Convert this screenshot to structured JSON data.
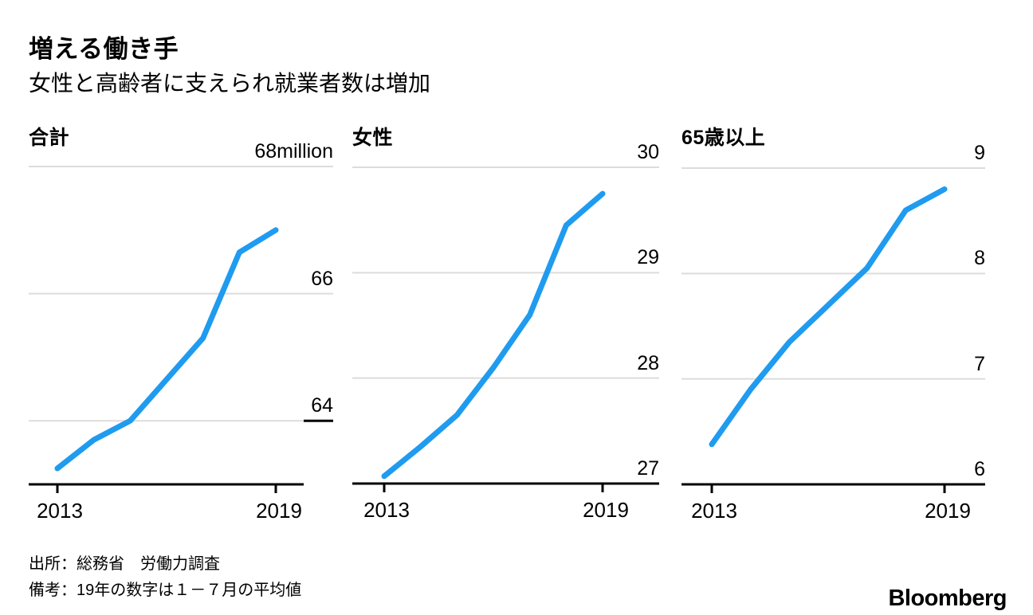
{
  "header": {
    "title": "増える働き手",
    "subtitle": "女性と高齢者に支えられ就業者数は増加"
  },
  "footer": {
    "source": "出所：総務省　労働力調査",
    "note": "備考：19年の数字は１－７月の平均値",
    "logo": "Bloomberg"
  },
  "colors": {
    "line": "#1f9bf0",
    "grid": "#dcdcdc",
    "axis": "#000000"
  },
  "chart_data": [
    {
      "type": "line",
      "title": "合計",
      "x": [
        2013,
        2014,
        2015,
        2016,
        2017,
        2018,
        2019
      ],
      "values": [
        63.25,
        63.7,
        64.0,
        64.65,
        65.3,
        66.65,
        67.0
      ],
      "ylim": [
        63,
        68
      ],
      "gridline_values": [
        68,
        66,
        64
      ],
      "ylabels": [
        {
          "v": 68,
          "text": "68million"
        },
        {
          "v": 66,
          "text": "66"
        },
        {
          "v": 64,
          "text": "64"
        }
      ],
      "xtick_labels": [
        "2013",
        "2019"
      ],
      "legend": "none",
      "grid": "horizontal"
    },
    {
      "type": "line",
      "title": "女性",
      "x": [
        2013,
        2014,
        2015,
        2016,
        2017,
        2018,
        2019
      ],
      "values": [
        27.07,
        27.35,
        27.65,
        28.1,
        28.6,
        29.45,
        29.75
      ],
      "ylim": [
        27,
        30
      ],
      "gridline_values": [
        30,
        29,
        28
      ],
      "ylabels": [
        {
          "v": 30,
          "text": "30"
        },
        {
          "v": 29,
          "text": "29"
        },
        {
          "v": 28,
          "text": "28"
        },
        {
          "v": 27,
          "text": "27"
        }
      ],
      "xtick_labels": [
        "2013",
        "2019"
      ],
      "legend": "none",
      "grid": "horizontal"
    },
    {
      "type": "line",
      "title": "65歳以上",
      "x": [
        2013,
        2014,
        2015,
        2016,
        2017,
        2018,
        2019
      ],
      "values": [
        6.38,
        6.9,
        7.35,
        7.7,
        8.05,
        8.6,
        8.8
      ],
      "ylim": [
        6,
        9
      ],
      "gridline_values": [
        9,
        8,
        7
      ],
      "ylabels": [
        {
          "v": 9,
          "text": "9"
        },
        {
          "v": 8,
          "text": "8"
        },
        {
          "v": 7,
          "text": "7"
        },
        {
          "v": 6,
          "text": "6"
        }
      ],
      "xtick_labels": [
        "2013",
        "2019"
      ],
      "legend": "none",
      "grid": "horizontal"
    }
  ]
}
